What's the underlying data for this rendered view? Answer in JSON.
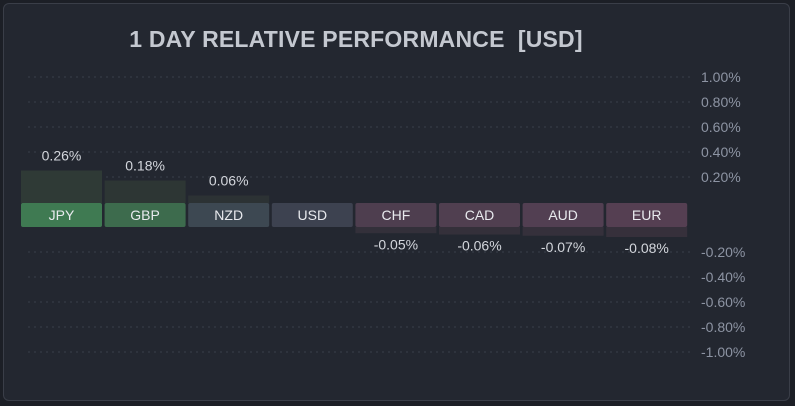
{
  "chart_data": {
    "type": "bar",
    "title": "1 DAY RELATIVE PERFORMANCE  [USD]",
    "categories": [
      "JPY",
      "GBP",
      "NZD",
      "USD",
      "CHF",
      "CAD",
      "AUD",
      "EUR"
    ],
    "values": [
      0.26,
      0.18,
      0.06,
      0.0,
      -0.05,
      -0.06,
      -0.07,
      -0.08
    ],
    "value_labels": [
      "0.26%",
      "0.18%",
      "0.06%",
      "",
      "-0.05%",
      "-0.06%",
      "-0.07%",
      "-0.08%"
    ],
    "ylim": [
      -1.0,
      1.0
    ],
    "y_ticks": [
      1.0,
      0.8,
      0.6,
      0.4,
      0.2,
      -0.2,
      -0.4,
      -0.6,
      -0.8,
      -1.0
    ],
    "y_tick_labels": [
      "1.00%",
      "0.80%",
      "0.60%",
      "0.40%",
      "0.20%",
      "-0.20%",
      "-0.40%",
      "-0.60%",
      "-0.80%",
      "-1.00%"
    ],
    "grid": true,
    "label_colors": [
      "#3f7a52",
      "#3d6b4d",
      "#3d4852",
      "#3d4250",
      "#4e3e4f",
      "#503f50",
      "#523f52",
      "#553f52"
    ],
    "bar_colors": [
      "#2f3a36",
      "#2d3634",
      "#2c3234",
      "#2a2e36",
      "#33303a",
      "#34303a",
      "#35303b",
      "#36303b"
    ]
  }
}
